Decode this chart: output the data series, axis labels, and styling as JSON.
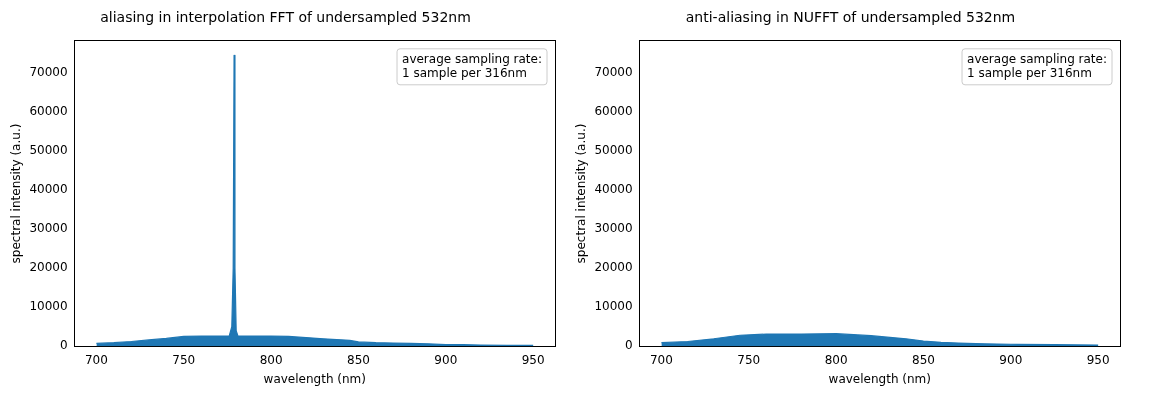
{
  "chart_data": [
    {
      "type": "area",
      "title": "aliasing in interpolation FFT of undersampled 532nm",
      "xlabel": "wavelength (nm)",
      "ylabel": "spectral intensity (a.u.)",
      "annotations": [
        "average sampling rate:\n1 sample per 316nm"
      ],
      "xlim": [
        687.5,
        962.5
      ],
      "xticks": [
        700,
        750,
        800,
        850,
        900,
        950
      ],
      "ylim": [
        0,
        78200
      ],
      "yticks": [
        0,
        10000,
        20000,
        30000,
        40000,
        50000,
        60000,
        70000
      ],
      "grid": false,
      "legend": false,
      "series": [
        {
          "color": "#1f77b4",
          "x": [
            700,
            710,
            720,
            730,
            740,
            750,
            760,
            770,
            776,
            777.5,
            778.3,
            778.8,
            779.3,
            780,
            781,
            790,
            800,
            810,
            820,
            830,
            845,
            850,
            860,
            870,
            880,
            890,
            900,
            910,
            920,
            935,
            950
          ],
          "values": [
            700,
            900,
            1200,
            1600,
            2000,
            2500,
            2600,
            2600,
            2600,
            5000,
            20000,
            74500,
            20000,
            4000,
            2600,
            2600,
            2600,
            2500,
            2200,
            1900,
            1500,
            1100,
            900,
            800,
            700,
            600,
            400,
            400,
            300,
            200,
            200
          ]
        }
      ]
    },
    {
      "type": "area",
      "title": "anti-aliasing in NUFFT of undersampled 532nm",
      "xlabel": "wavelength (nm)",
      "ylabel": "spectral intensity (a.u.)",
      "annotations": [
        "average sampling rate:\n1 sample per 316nm"
      ],
      "xlim": [
        687.5,
        962.5
      ],
      "xticks": [
        700,
        750,
        800,
        850,
        900,
        950
      ],
      "ylim": [
        0,
        78200
      ],
      "yticks": [
        0,
        10000,
        20000,
        30000,
        40000,
        50000,
        60000,
        70000
      ],
      "grid": false,
      "legend": false,
      "series": [
        {
          "color": "#1f77b4",
          "x": [
            700,
            715,
            730,
            745,
            760,
            780,
            800,
            820,
            840,
            850,
            860,
            870,
            885,
            900,
            925,
            950
          ],
          "values": [
            900,
            1200,
            1900,
            2800,
            3100,
            3100,
            3200,
            2700,
            1900,
            1300,
            1000,
            800,
            600,
            500,
            400,
            300
          ]
        }
      ]
    }
  ]
}
